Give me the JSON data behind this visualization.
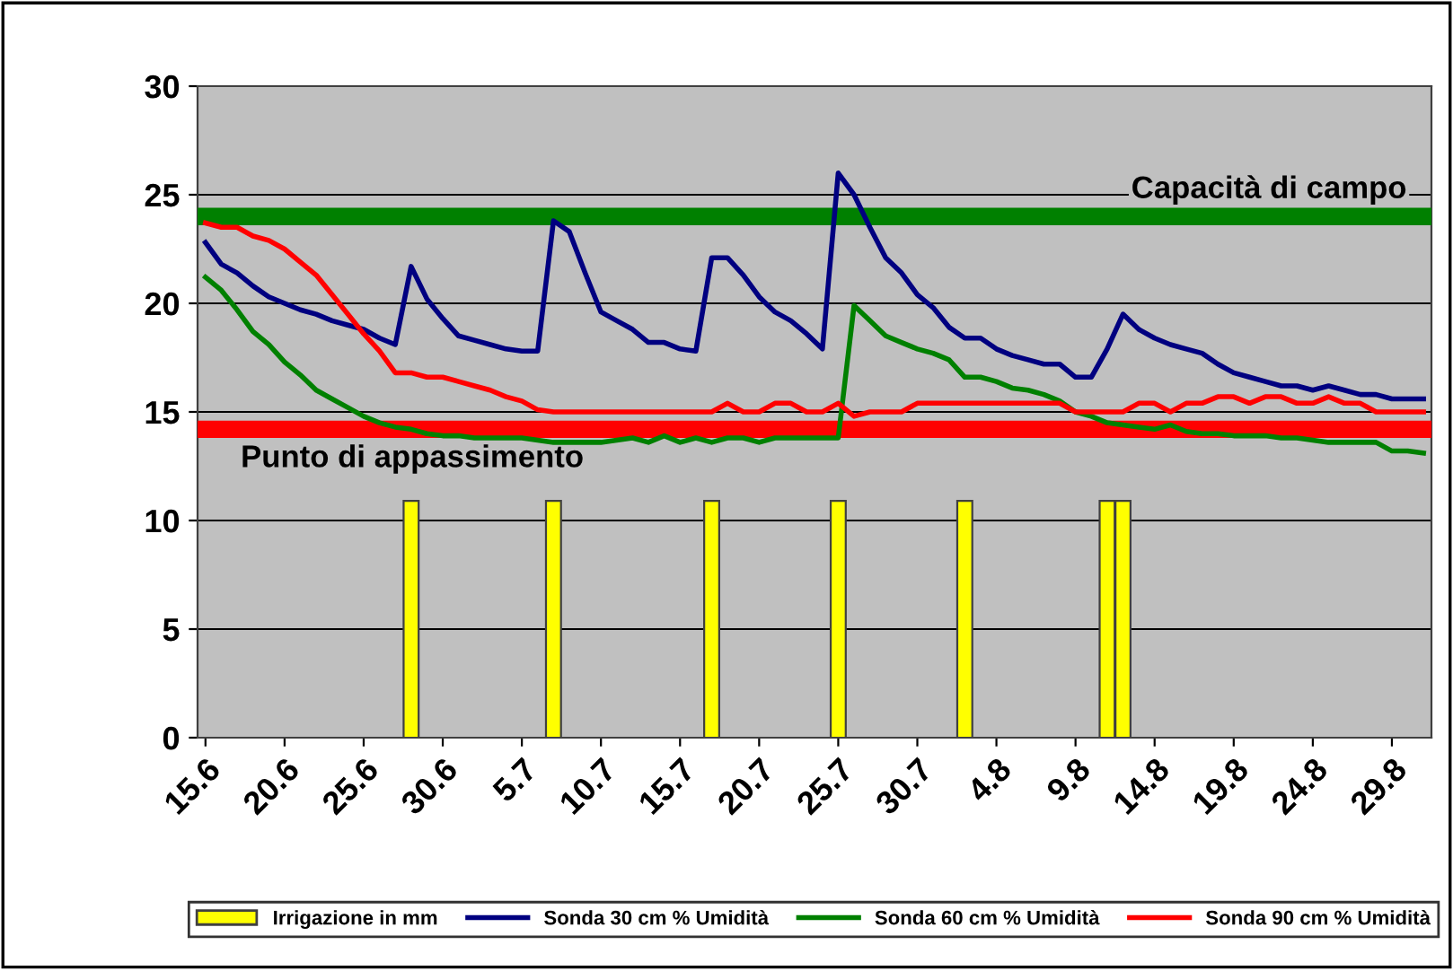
{
  "chart_data": {
    "type": "bar",
    "categories": [
      "15.6",
      null,
      null,
      null,
      null,
      "20.6",
      null,
      null,
      null,
      null,
      "25.6",
      null,
      null,
      null,
      null,
      "30.6",
      null,
      null,
      null,
      null,
      "5.7",
      null,
      null,
      null,
      null,
      "10.7",
      null,
      null,
      null,
      null,
      "15.7",
      null,
      null,
      null,
      null,
      "20.7",
      null,
      null,
      null,
      null,
      "25.7",
      null,
      null,
      null,
      null,
      "30.7",
      null,
      null,
      null,
      null,
      "4.8",
      null,
      null,
      null,
      null,
      "9.8",
      null,
      null,
      null,
      null,
      "14.8",
      null,
      null,
      null,
      null,
      "19.8",
      null,
      null,
      null,
      null,
      "24.8",
      null,
      null,
      null,
      null,
      "29.8",
      null,
      null
    ],
    "series": [
      {
        "name": "Irrigazione in mm",
        "color": "#ffff00",
        "values": [
          null,
          null,
          null,
          null,
          null,
          null,
          null,
          null,
          null,
          null,
          null,
          null,
          null,
          10.9,
          null,
          null,
          null,
          null,
          null,
          null,
          null,
          null,
          10.9,
          null,
          null,
          null,
          null,
          null,
          null,
          null,
          null,
          null,
          10.9,
          null,
          null,
          null,
          null,
          null,
          null,
          null,
          10.9,
          null,
          null,
          null,
          null,
          null,
          null,
          null,
          10.9,
          null,
          null,
          null,
          null,
          null,
          null,
          null,
          null,
          10.9,
          10.9,
          null,
          null,
          null,
          null,
          null,
          null,
          null,
          null,
          null,
          null,
          null,
          null,
          null,
          null,
          null,
          null,
          null,
          null,
          null
        ]
      },
      {
        "name": "Sonda 30 cm % Umidità",
        "type": "line",
        "color": "#000080",
        "values": [
          22.8,
          21.8,
          21.4,
          20.8,
          20.3,
          20.0,
          19.7,
          19.5,
          19.2,
          19.0,
          18.8,
          18.4,
          18.1,
          21.7,
          20.2,
          19.3,
          18.5,
          18.3,
          18.1,
          17.9,
          17.8,
          17.8,
          23.8,
          23.3,
          21.4,
          19.6,
          19.2,
          18.8,
          18.2,
          18.2,
          17.9,
          17.8,
          22.1,
          22.1,
          21.3,
          20.3,
          19.6,
          19.2,
          18.6,
          17.9,
          26.0,
          25.0,
          23.5,
          22.1,
          21.4,
          20.4,
          19.8,
          18.9,
          18.4,
          18.4,
          17.9,
          17.6,
          17.4,
          17.2,
          17.2,
          16.6,
          16.6,
          17.9,
          19.5,
          18.8,
          18.4,
          18.1,
          17.9,
          17.7,
          17.2,
          16.8,
          16.6,
          16.4,
          16.2,
          16.2,
          16.0,
          16.2,
          16.0,
          15.8,
          15.8,
          15.6,
          15.6,
          15.6
        ]
      },
      {
        "name": "Sonda 60 cm % Umidità",
        "type": "line",
        "color": "#008000",
        "values": [
          21.2,
          20.6,
          19.7,
          18.7,
          18.1,
          17.3,
          16.7,
          16.0,
          15.6,
          15.2,
          14.8,
          14.5,
          14.3,
          14.2,
          14.0,
          13.9,
          13.9,
          13.8,
          13.8,
          13.8,
          13.8,
          13.7,
          13.6,
          13.6,
          13.6,
          13.6,
          13.7,
          13.8,
          13.6,
          13.9,
          13.6,
          13.8,
          13.6,
          13.8,
          13.8,
          13.6,
          13.8,
          13.8,
          13.8,
          13.8,
          13.8,
          19.9,
          19.2,
          18.5,
          18.2,
          17.9,
          17.7,
          17.4,
          16.6,
          16.6,
          16.4,
          16.1,
          16.0,
          15.8,
          15.5,
          15.0,
          14.8,
          14.5,
          14.4,
          14.3,
          14.2,
          14.4,
          14.1,
          14.0,
          14.0,
          13.9,
          13.9,
          13.9,
          13.8,
          13.8,
          13.7,
          13.6,
          13.6,
          13.6,
          13.6,
          13.2,
          13.2,
          13.1
        ]
      },
      {
        "name": "Sonda 90 cm % Umidità",
        "type": "line",
        "color": "#ff0000",
        "values": [
          23.7,
          23.5,
          23.5,
          23.1,
          22.9,
          22.5,
          21.9,
          21.3,
          20.4,
          19.5,
          18.6,
          17.8,
          16.8,
          16.8,
          16.6,
          16.6,
          16.4,
          16.2,
          16.0,
          15.7,
          15.5,
          15.1,
          15.0,
          15.0,
          15.0,
          15.0,
          15.0,
          15.0,
          15.0,
          15.0,
          15.0,
          15.0,
          15.0,
          15.4,
          15.0,
          15.0,
          15.4,
          15.4,
          15.0,
          15.0,
          15.4,
          14.8,
          15.0,
          15.0,
          15.0,
          15.4,
          15.4,
          15.4,
          15.4,
          15.4,
          15.4,
          15.4,
          15.4,
          15.4,
          15.4,
          15.0,
          15.0,
          15.0,
          15.0,
          15.4,
          15.4,
          15.0,
          15.4,
          15.4,
          15.7,
          15.7,
          15.4,
          15.7,
          15.7,
          15.4,
          15.4,
          15.7,
          15.4,
          15.4,
          15.0,
          15.0,
          15.0,
          15.0
        ]
      }
    ],
    "ref_lines": [
      {
        "axis": "y",
        "value": 24,
        "label": "Capacità di campo",
        "color": "#008000"
      },
      {
        "axis": "y",
        "value": 14.2,
        "label": "Punto di appassimento",
        "color": "#ff0000"
      }
    ],
    "ylim": [
      0,
      30
    ],
    "yticks": [
      0,
      5,
      10,
      15,
      20,
      25,
      30
    ],
    "grid": "y",
    "legend": "bottom",
    "marker": "none",
    "line_style": "solid"
  }
}
